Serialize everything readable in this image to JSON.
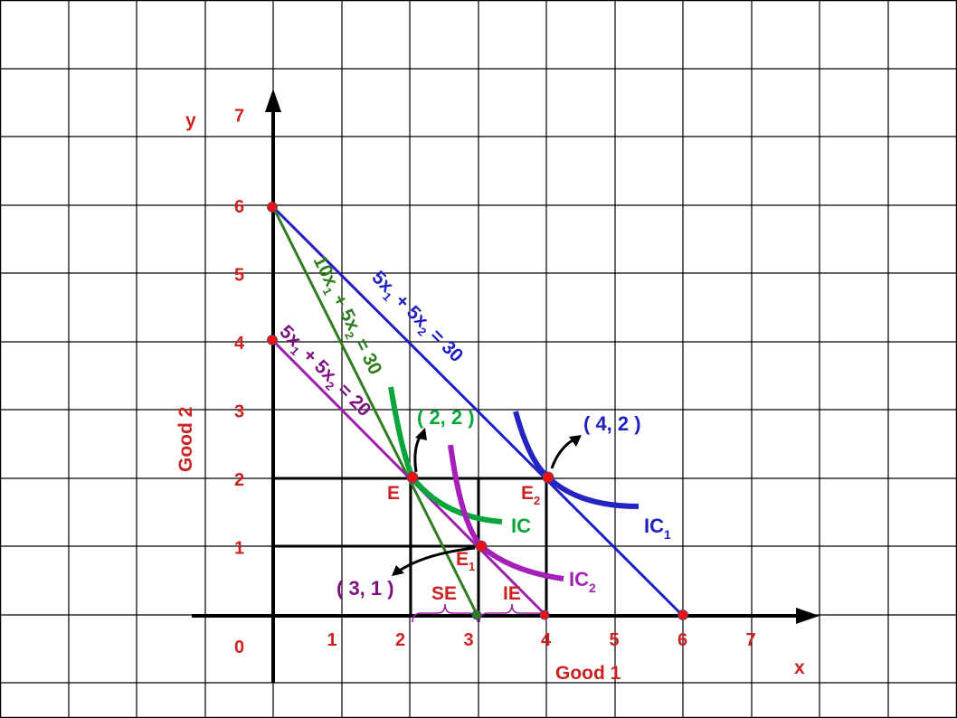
{
  "axes": {
    "x_label": "x",
    "y_label": "y",
    "x_title": "Good 1",
    "y_title": "Good 2",
    "origin_label": "0",
    "x_ticks": [
      "1",
      "2",
      "3",
      "4",
      "5",
      "6",
      "7"
    ],
    "y_ticks": [
      "1",
      "2",
      "3",
      "4",
      "5",
      "6",
      "7"
    ]
  },
  "lines": [
    {
      "name": "budget-line-original",
      "label": "5x1 + 5x2 = 30",
      "from": [
        0,
        6
      ],
      "to": [
        6,
        0
      ],
      "color": "#1f1fbf"
    },
    {
      "name": "budget-line-new-price",
      "label": "10x1 + 5x2 = 30",
      "from": [
        0,
        6
      ],
      "to": [
        3,
        0
      ],
      "color": "#2e7d1e"
    },
    {
      "name": "budget-line-compensated",
      "label": "5x1 + 5x2 = 20",
      "from": [
        0,
        4
      ],
      "to": [
        4,
        0
      ],
      "color": "#9c1fa8"
    }
  ],
  "curves": {
    "ic": "IC",
    "ic1": "IC",
    "ic1_sub": "1",
    "ic2": "IC",
    "ic2_sub": "2"
  },
  "points": {
    "E": {
      "label": "E",
      "coord": "( 2, 2 )",
      "x": 2,
      "y": 2
    },
    "E1": {
      "label": "E",
      "sub": "1",
      "coord": "( 3, 1 )",
      "x": 3,
      "y": 1
    },
    "E2": {
      "label": "E",
      "sub": "2",
      "coord": "( 4, 2 )",
      "x": 4,
      "y": 2
    }
  },
  "effects": {
    "se": "SE",
    "ie": "IE"
  },
  "colors": {
    "red": "#cc2222",
    "blue": "#1f1fbf",
    "green_line": "#2e7d1e",
    "green_ic": "#08a63a",
    "purple": "#9c1fa8"
  }
}
